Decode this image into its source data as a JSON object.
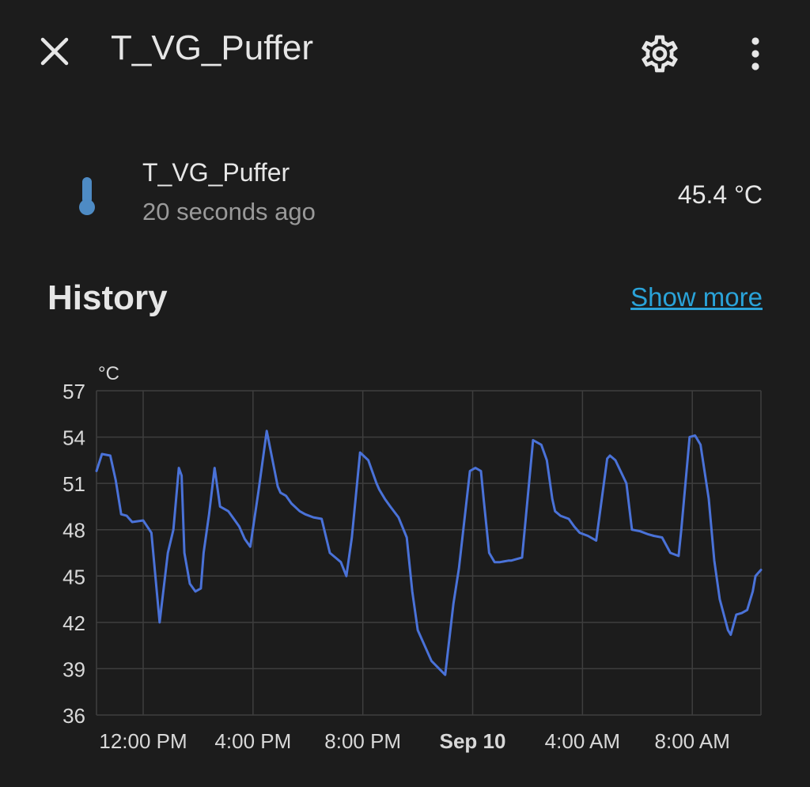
{
  "header": {
    "title": "T_VG_Puffer",
    "close_icon": "close-icon",
    "settings_icon": "gear-icon",
    "more_icon": "more-vertical-icon"
  },
  "entity": {
    "icon": "thermometer-icon",
    "name": "T_VG_Puffer",
    "last_changed": "20 seconds ago",
    "state": "45.4 °C",
    "icon_color": "#4e8bc4"
  },
  "history": {
    "title": "History",
    "show_more": "Show more"
  },
  "colors": {
    "background": "#1c1c1c",
    "line": "#4a72d8",
    "grid": "#3e3e3e",
    "link": "#2aa3d9"
  },
  "chart_data": {
    "type": "line",
    "unit_label": "°C",
    "ylim": [
      36,
      57
    ],
    "yticks": [
      57,
      54,
      51,
      48,
      45,
      42,
      39,
      36
    ],
    "xlim_hours": [
      10.3,
      34.5
    ],
    "xticks": [
      {
        "h": 12,
        "label": "12:00 PM",
        "bold": false
      },
      {
        "h": 16,
        "label": "4:00 PM",
        "bold": false
      },
      {
        "h": 20,
        "label": "8:00 PM",
        "bold": false
      },
      {
        "h": 24,
        "label": "Sep 10",
        "bold": true
      },
      {
        "h": 28,
        "label": "4:00 AM",
        "bold": false
      },
      {
        "h": 32,
        "label": "8:00 AM",
        "bold": false
      }
    ],
    "grid": true,
    "series": [
      {
        "x": [
          10.3,
          10.5,
          10.8,
          11.0,
          11.2,
          11.4,
          11.6,
          12.0,
          12.3,
          12.6,
          12.9,
          13.1,
          13.3,
          13.4,
          13.5,
          13.7,
          13.9,
          14.1,
          14.2,
          14.4,
          14.6,
          14.8,
          15.0,
          15.1,
          15.3,
          15.5,
          15.7,
          15.9,
          16.2,
          16.5,
          16.9,
          17.0,
          17.2,
          17.4,
          17.7,
          17.9,
          18.2,
          18.5,
          18.8,
          19.0,
          19.2,
          19.4,
          19.6,
          19.9,
          20.2,
          20.5,
          20.6,
          20.8,
          21.0,
          21.3,
          21.6,
          21.8,
          22.0,
          22.5,
          23.0,
          23.3,
          23.5,
          23.9,
          24.1,
          24.3,
          24.4,
          24.6,
          24.8,
          25.0,
          25.3,
          25.4,
          25.6,
          25.8,
          26.2,
          26.5,
          26.7,
          26.9,
          27.0,
          27.2,
          27.5,
          27.7,
          27.9,
          28.2,
          28.5,
          28.9,
          29.0,
          29.2,
          29.6,
          29.8,
          30.1,
          30.4,
          30.6,
          30.9,
          31.2,
          31.5,
          31.6,
          31.9,
          32.1,
          32.3,
          32.6,
          32.8,
          33.0,
          33.3,
          33.4,
          33.6,
          33.8,
          34.0,
          34.2,
          34.3,
          34.5
        ],
        "y": [
          51.8,
          52.9,
          52.8,
          51.2,
          49.0,
          48.9,
          48.5,
          48.6,
          47.8,
          42.0,
          46.5,
          48.0,
          52.0,
          51.5,
          46.5,
          44.5,
          44.0,
          44.2,
          46.5,
          49.0,
          52.0,
          49.5,
          49.3,
          49.2,
          48.7,
          48.2,
          47.4,
          46.9,
          50.5,
          54.4,
          50.8,
          50.4,
          50.2,
          49.7,
          49.2,
          49.0,
          48.8,
          48.7,
          46.5,
          46.2,
          45.9,
          45.0,
          47.5,
          53.0,
          52.5,
          51.0,
          50.6,
          50.0,
          49.5,
          48.8,
          47.5,
          44.0,
          41.5,
          39.5,
          38.6,
          43.2,
          45.5,
          51.8,
          52.0,
          51.8,
          50.0,
          46.5,
          45.9,
          45.9,
          46.0,
          46.0,
          46.1,
          46.2,
          53.8,
          53.5,
          52.5,
          50.0,
          49.2,
          48.9,
          48.7,
          48.2,
          47.8,
          47.6,
          47.3,
          52.6,
          52.8,
          52.5,
          51.0,
          48.0,
          47.9,
          47.7,
          47.6,
          47.5,
          46.5,
          46.3,
          48.0,
          54.0,
          54.1,
          53.5,
          50.0,
          46.0,
          43.5,
          41.5,
          41.2,
          42.5,
          42.6,
          42.8,
          44.0,
          45.0,
          45.4
        ]
      }
    ]
  }
}
